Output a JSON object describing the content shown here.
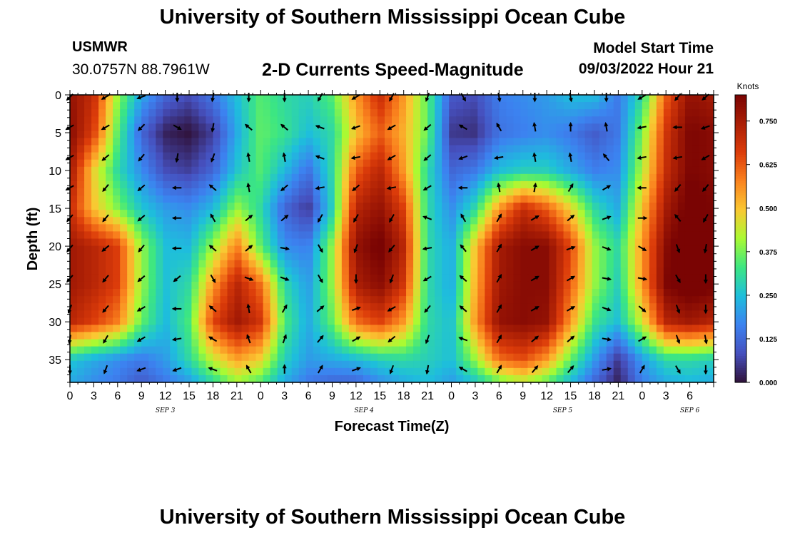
{
  "header": {
    "title": "University of Southern Mississippi Ocean Cube",
    "station": "USMWR",
    "coords": "30.0757N  88.7961W",
    "subtitle": "2-D Currents Speed-Magnitude",
    "start_label": "Model Start Time",
    "start_value": "09/03/2022 Hour 21"
  },
  "footer": {
    "title": "University of Southern Mississippi Ocean Cube"
  },
  "chart_data": {
    "type": "heatmap",
    "title": "2-D Currents Speed-Magnitude",
    "xlabel": "Forecast Time(Z)",
    "ylabel": "Depth (ft)",
    "x_hours_range": [
      0,
      81
    ],
    "x_tick_step_hours": 3,
    "x_tick_labels": [
      "0",
      "3",
      "6",
      "9",
      "12",
      "15",
      "18",
      "21",
      "0",
      "3",
      "6",
      "9",
      "12",
      "15",
      "18",
      "21",
      "0",
      "3",
      "6",
      "9",
      "12",
      "15",
      "18",
      "21",
      "0",
      "3",
      "6"
    ],
    "date_labels": [
      {
        "label": "SEP 3",
        "hour": 12
      },
      {
        "label": "SEP 4",
        "hour": 37
      },
      {
        "label": "SEP 5",
        "hour": 62
      },
      {
        "label": "SEP 6",
        "hour": 78
      }
    ],
    "ylim": [
      38,
      0
    ],
    "y_ticks": [
      0,
      5,
      10,
      15,
      20,
      25,
      30,
      35
    ],
    "colorbar": {
      "label": "Knots",
      "range": [
        0,
        0.825
      ],
      "ticks": [
        "0.000",
        "0.125",
        "0.250",
        "0.375",
        "0.500",
        "0.625",
        "0.750"
      ]
    },
    "speed_grid": {
      "depths": [
        0,
        5,
        10,
        15,
        20,
        25,
        30,
        35,
        38
      ],
      "hours": [
        0,
        3,
        6,
        9,
        12,
        15,
        18,
        21,
        24,
        27,
        30,
        33,
        36,
        39,
        42,
        45,
        48,
        51,
        54,
        57,
        60,
        63,
        66,
        69,
        72,
        75,
        78,
        81
      ],
      "values": [
        [
          0.78,
          0.7,
          0.4,
          0.22,
          0.12,
          0.08,
          0.15,
          0.25,
          0.35,
          0.3,
          0.28,
          0.35,
          0.55,
          0.7,
          0.55,
          0.35,
          0.1,
          0.08,
          0.16,
          0.18,
          0.2,
          0.25,
          0.25,
          0.15,
          0.3,
          0.62,
          0.78,
          0.75
        ],
        [
          0.8,
          0.66,
          0.35,
          0.12,
          0.02,
          0.0,
          0.06,
          0.22,
          0.36,
          0.32,
          0.25,
          0.3,
          0.5,
          0.62,
          0.52,
          0.36,
          0.05,
          0.04,
          0.14,
          0.16,
          0.18,
          0.15,
          0.1,
          0.15,
          0.38,
          0.68,
          0.82,
          0.8
        ],
        [
          0.76,
          0.48,
          0.3,
          0.18,
          0.08,
          0.06,
          0.12,
          0.26,
          0.35,
          0.24,
          0.14,
          0.3,
          0.62,
          0.72,
          0.55,
          0.3,
          0.12,
          0.15,
          0.25,
          0.28,
          0.28,
          0.22,
          0.16,
          0.18,
          0.42,
          0.7,
          0.82,
          0.8
        ],
        [
          0.7,
          0.5,
          0.38,
          0.26,
          0.2,
          0.18,
          0.24,
          0.4,
          0.3,
          0.12,
          0.05,
          0.28,
          0.72,
          0.78,
          0.66,
          0.3,
          0.18,
          0.3,
          0.55,
          0.7,
          0.62,
          0.48,
          0.3,
          0.22,
          0.5,
          0.75,
          0.85,
          0.82
        ],
        [
          0.76,
          0.72,
          0.66,
          0.4,
          0.25,
          0.24,
          0.4,
          0.58,
          0.35,
          0.18,
          0.16,
          0.4,
          0.78,
          0.84,
          0.72,
          0.3,
          0.22,
          0.5,
          0.75,
          0.8,
          0.8,
          0.65,
          0.4,
          0.3,
          0.55,
          0.8,
          0.88,
          0.86
        ],
        [
          0.76,
          0.72,
          0.66,
          0.4,
          0.25,
          0.3,
          0.55,
          0.72,
          0.6,
          0.3,
          0.2,
          0.4,
          0.74,
          0.8,
          0.68,
          0.3,
          0.22,
          0.52,
          0.76,
          0.8,
          0.8,
          0.62,
          0.4,
          0.28,
          0.55,
          0.82,
          0.86,
          0.84
        ],
        [
          0.72,
          0.66,
          0.58,
          0.36,
          0.24,
          0.34,
          0.65,
          0.76,
          0.68,
          0.34,
          0.22,
          0.36,
          0.6,
          0.66,
          0.55,
          0.3,
          0.25,
          0.55,
          0.78,
          0.8,
          0.78,
          0.55,
          0.32,
          0.25,
          0.45,
          0.72,
          0.76,
          0.72
        ],
        [
          0.26,
          0.22,
          0.18,
          0.15,
          0.2,
          0.3,
          0.44,
          0.54,
          0.48,
          0.28,
          0.2,
          0.22,
          0.24,
          0.28,
          0.3,
          0.28,
          0.25,
          0.4,
          0.6,
          0.64,
          0.55,
          0.36,
          0.2,
          0.05,
          0.2,
          0.3,
          0.3,
          0.28
        ],
        [
          0.22,
          0.18,
          0.15,
          0.1,
          0.15,
          0.2,
          0.3,
          0.4,
          0.34,
          0.22,
          0.15,
          0.12,
          0.12,
          0.18,
          0.22,
          0.25,
          0.2,
          0.26,
          0.36,
          0.42,
          0.35,
          0.24,
          0.12,
          0.02,
          0.16,
          0.22,
          0.24,
          0.22
        ]
      ]
    },
    "vectors": {
      "depths": [
        0,
        4,
        8,
        12,
        16,
        20,
        24,
        28,
        32,
        36
      ],
      "hours": [
        0,
        4.5,
        9,
        13.5,
        18,
        22.5,
        27,
        31.5,
        36,
        40.5,
        45,
        49.5,
        54,
        58.5,
        63,
        67.5,
        72,
        76.5,
        80
      ],
      "directions_deg": [
        [
          135,
          150,
          160,
          90,
          100,
          90,
          90,
          120,
          150,
          120,
          110,
          60,
          80,
          90,
          80,
          90,
          150,
          130,
          140
        ],
        [
          150,
          150,
          135,
          30,
          100,
          220,
          220,
          200,
          160,
          150,
          140,
          210,
          240,
          260,
          270,
          260,
          170,
          180,
          160
        ],
        [
          150,
          140,
          130,
          100,
          110,
          260,
          260,
          200,
          170,
          150,
          140,
          160,
          170,
          260,
          260,
          230,
          170,
          170,
          150
        ],
        [
          150,
          130,
          140,
          180,
          220,
          260,
          140,
          170,
          140,
          170,
          150,
          180,
          260,
          280,
          300,
          330,
          180,
          130,
          130
        ],
        [
          130,
          130,
          140,
          180,
          240,
          320,
          320,
          120,
          120,
          120,
          200,
          240,
          300,
          330,
          320,
          340,
          0,
          230,
          120
        ],
        [
          130,
          140,
          130,
          180,
          220,
          320,
          10,
          60,
          110,
          130,
          170,
          230,
          300,
          330,
          340,
          20,
          30,
          70,
          100
        ],
        [
          130,
          130,
          140,
          140,
          60,
          20,
          20,
          60,
          90,
          110,
          150,
          220,
          300,
          330,
          330,
          10,
          10,
          60,
          90
        ],
        [
          110,
          130,
          150,
          180,
          220,
          260,
          300,
          320,
          340,
          150,
          130,
          220,
          300,
          330,
          330,
          20,
          40,
          70,
          90
        ],
        [
          100,
          120,
          150,
          170,
          210,
          250,
          290,
          310,
          330,
          140,
          110,
          200,
          300,
          320,
          320,
          10,
          330,
          70,
          80
        ],
        [
          90,
          110,
          160,
          160,
          200,
          240,
          270,
          300,
          340,
          110,
          100,
          210,
          300,
          310,
          310,
          350,
          300,
          60,
          90
        ]
      ]
    }
  }
}
